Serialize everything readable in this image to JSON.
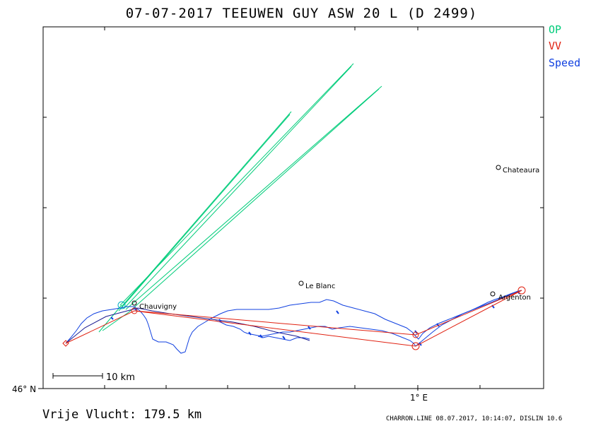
{
  "header": {
    "title": "07-07-2017   TEEUWEN GUY   ASW 20 L (D 2499)"
  },
  "legend": {
    "items": [
      {
        "label": "OP",
        "color": "#00cc7a"
      },
      {
        "label": "VV",
        "color": "#e02010"
      },
      {
        "label": "Speed",
        "color": "#1040e0"
      }
    ]
  },
  "axes": {
    "lat_label": "46° N",
    "lon_label": "1° E"
  },
  "places": [
    {
      "name": "Chateaura"
    },
    {
      "name": "Le Blanc"
    },
    {
      "name": "Argenton"
    },
    {
      "name": "Chauvigny"
    }
  ],
  "scale_bar": {
    "label": "10 km"
  },
  "footer": {
    "distance_text": "Vrije Vlucht:  179.5 km",
    "credits": "CHARRON.LINE 08.07.2017, 10:14:07, DISLIN 10.6"
  }
}
